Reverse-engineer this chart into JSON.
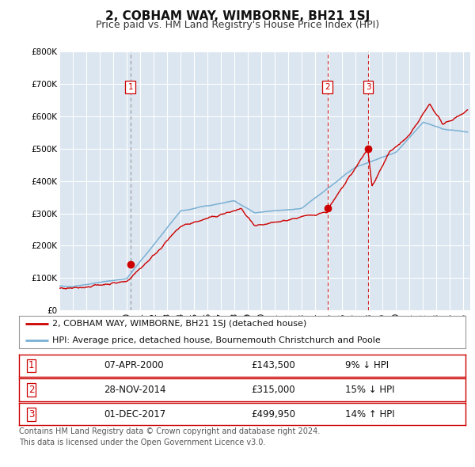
{
  "title": "2, COBHAM WAY, WIMBORNE, BH21 1SJ",
  "subtitle": "Price paid vs. HM Land Registry's House Price Index (HPI)",
  "ylim": [
    0,
    800000
  ],
  "yticks": [
    0,
    100000,
    200000,
    300000,
    400000,
    500000,
    600000,
    700000,
    800000
  ],
  "ytick_labels": [
    "£0",
    "£100K",
    "£200K",
    "£300K",
    "£400K",
    "£500K",
    "£600K",
    "£700K",
    "£800K"
  ],
  "xlim_start": 1995.0,
  "xlim_end": 2025.5,
  "plot_bg_color": "#dce6f0",
  "fig_bg_color": "#ffffff",
  "red_line_color": "#cc0000",
  "blue_line_color": "#7ab0d4",
  "grid_color": "#ffffff",
  "transactions": [
    {
      "date_year": 2000.27,
      "price": 143500,
      "label": "1"
    },
    {
      "date_year": 2014.91,
      "price": 315000,
      "label": "2"
    },
    {
      "date_year": 2017.92,
      "price": 499950,
      "label": "3"
    }
  ],
  "vline1_color": "#999999",
  "vline23_color": "#cc0000",
  "legend_red_label": "2, COBHAM WAY, WIMBORNE, BH21 1SJ (detached house)",
  "legend_blue_label": "HPI: Average price, detached house, Bournemouth Christchurch and Poole",
  "table_rows": [
    {
      "num": "1",
      "date": "07-APR-2000",
      "price": "£143,500",
      "hpi": "9% ↓ HPI"
    },
    {
      "num": "2",
      "date": "28-NOV-2014",
      "price": "£315,000",
      "hpi": "15% ↓ HPI"
    },
    {
      "num": "3",
      "date": "01-DEC-2017",
      "price": "£499,950",
      "hpi": "14% ↑ HPI"
    }
  ],
  "footer_text": "Contains HM Land Registry data © Crown copyright and database right 2024.\nThis data is licensed under the Open Government Licence v3.0.",
  "title_fontsize": 11,
  "subtitle_fontsize": 9,
  "tick_fontsize": 7.5,
  "legend_fontsize": 8,
  "table_fontsize": 8.5,
  "footer_fontsize": 7
}
